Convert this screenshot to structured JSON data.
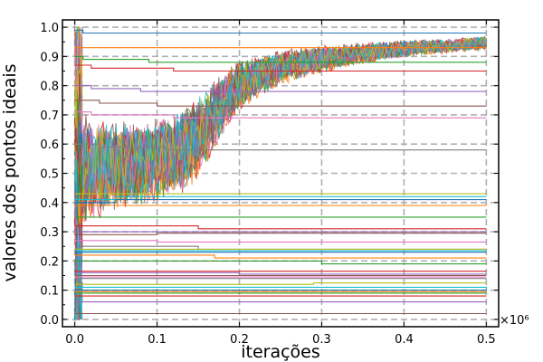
{
  "chart_data": {
    "type": "line",
    "title": "",
    "xlabel": "iterações",
    "ylabel": "valores dos pontos ideais",
    "x_multiplier_label": "×10⁶",
    "xlim": [
      -0.015,
      0.515
    ],
    "ylim": [
      -0.025,
      1.025
    ],
    "x_ticks": [
      0.0,
      0.1,
      0.2,
      0.3,
      0.4,
      0.5
    ],
    "x_tick_labels": [
      "0.0",
      "0.1",
      "0.2",
      "0.3",
      "0.4",
      "0.5"
    ],
    "y_ticks": [
      0.0,
      0.1,
      0.2,
      0.3,
      0.4,
      0.5,
      0.6,
      0.7,
      0.8,
      0.9,
      1.0
    ],
    "y_tick_labels": [
      "0.0",
      "0.1",
      "0.2",
      "0.3",
      "0.4",
      "0.5",
      "0.6",
      "0.7",
      "0.8",
      "0.9",
      "1.0"
    ],
    "grid": true,
    "grid_style": "dashed",
    "legend": "none",
    "series_colors": [
      "#1f77b4",
      "#ff7f0e",
      "#2ca02c",
      "#d62728",
      "#9467bd",
      "#8c564b",
      "#e377c2",
      "#7f7f7f",
      "#bcbd22",
      "#17becf"
    ],
    "converging_band": {
      "x": [
        0.0,
        0.02,
        0.05,
        0.08,
        0.1,
        0.13,
        0.15,
        0.17,
        0.2,
        0.25,
        0.3,
        0.35,
        0.4,
        0.45,
        0.5
      ],
      "center": [
        0.5,
        0.51,
        0.52,
        0.53,
        0.54,
        0.57,
        0.62,
        0.7,
        0.8,
        0.86,
        0.89,
        0.91,
        0.925,
        0.935,
        0.945
      ],
      "spread": [
        0.18,
        0.15,
        0.13,
        0.12,
        0.12,
        0.12,
        0.12,
        0.1,
        0.07,
        0.05,
        0.04,
        0.03,
        0.025,
        0.02,
        0.02
      ]
    },
    "plateau_series": [
      {
        "levels": [
          [
            0.0,
            0.99
          ],
          [
            0.01,
            0.98
          ]
        ]
      },
      {
        "levels": [
          [
            0.0,
            0.93
          ],
          [
            0.2,
            0.93
          ]
        ]
      },
      {
        "levels": [
          [
            0.0,
            0.9
          ],
          [
            0.01,
            0.89
          ],
          [
            0.09,
            0.88
          ]
        ]
      },
      {
        "levels": [
          [
            0.0,
            0.87
          ],
          [
            0.02,
            0.86
          ],
          [
            0.12,
            0.85
          ]
        ]
      },
      {
        "levels": [
          [
            0.0,
            0.8
          ],
          [
            0.02,
            0.79
          ],
          [
            0.08,
            0.78
          ]
        ]
      },
      {
        "levels": [
          [
            0.0,
            0.75
          ],
          [
            0.03,
            0.74
          ],
          [
            0.1,
            0.73
          ]
        ]
      },
      {
        "levels": [
          [
            0.0,
            0.71
          ],
          [
            0.02,
            0.7
          ],
          [
            0.12,
            0.69
          ]
        ]
      },
      {
        "levels": [
          [
            0.0,
            0.6
          ],
          [
            0.03,
            0.59
          ],
          [
            0.11,
            0.58
          ]
        ]
      },
      {
        "levels": [
          [
            0.0,
            0.43
          ],
          [
            0.1,
            0.43
          ],
          [
            0.3,
            0.43
          ]
        ]
      },
      {
        "levels": [
          [
            0.0,
            0.41
          ],
          [
            0.05,
            0.42
          ],
          [
            0.5,
            0.42
          ]
        ]
      },
      {
        "levels": [
          [
            0.0,
            0.4
          ],
          [
            0.05,
            0.41
          ],
          [
            0.5,
            0.41
          ]
        ]
      },
      {
        "levels": [
          [
            0.0,
            0.39
          ],
          [
            0.2,
            0.39
          ]
        ]
      },
      {
        "levels": [
          [
            0.0,
            0.35
          ],
          [
            0.1,
            0.35
          ],
          [
            0.5,
            0.35
          ]
        ]
      },
      {
        "levels": [
          [
            0.0,
            0.32
          ],
          [
            0.15,
            0.31
          ],
          [
            0.5,
            0.31
          ]
        ]
      },
      {
        "levels": [
          [
            0.0,
            0.3
          ],
          [
            0.2,
            0.3
          ],
          [
            0.5,
            0.3
          ]
        ]
      },
      {
        "levels": [
          [
            0.0,
            0.29
          ],
          [
            0.1,
            0.295
          ],
          [
            0.5,
            0.295
          ]
        ]
      },
      {
        "levels": [
          [
            0.0,
            0.27
          ],
          [
            0.03,
            0.27
          ],
          [
            0.1,
            0.265
          ]
        ]
      },
      {
        "levels": [
          [
            0.0,
            0.25
          ],
          [
            0.05,
            0.25
          ],
          [
            0.15,
            0.24
          ]
        ]
      },
      {
        "levels": [
          [
            0.0,
            0.24
          ],
          [
            0.05,
            0.24
          ],
          [
            0.5,
            0.24
          ]
        ]
      },
      {
        "levels": [
          [
            0.0,
            0.235
          ],
          [
            0.5,
            0.235
          ]
        ]
      },
      {
        "levels": [
          [
            0.0,
            0.23
          ],
          [
            0.5,
            0.23
          ]
        ]
      },
      {
        "levels": [
          [
            0.0,
            0.22
          ],
          [
            0.1,
            0.22
          ],
          [
            0.17,
            0.21
          ]
        ]
      },
      {
        "levels": [
          [
            0.0,
            0.2
          ],
          [
            0.12,
            0.2
          ],
          [
            0.3,
            0.19
          ]
        ]
      },
      {
        "levels": [
          [
            0.0,
            0.165
          ],
          [
            0.05,
            0.165
          ]
        ]
      },
      {
        "levels": [
          [
            0.0,
            0.16
          ],
          [
            0.1,
            0.16
          ],
          [
            0.2,
            0.155
          ]
        ]
      },
      {
        "levels": [
          [
            0.0,
            0.15
          ],
          [
            0.5,
            0.15
          ]
        ]
      },
      {
        "levels": [
          [
            0.0,
            0.145
          ],
          [
            0.2,
            0.145
          ],
          [
            0.5,
            0.145
          ]
        ]
      },
      {
        "levels": [
          [
            0.0,
            0.14
          ],
          [
            0.25,
            0.14
          ],
          [
            0.5,
            0.14
          ]
        ]
      },
      {
        "levels": [
          [
            0.0,
            0.12
          ],
          [
            0.1,
            0.12
          ],
          [
            0.29,
            0.125
          ]
        ]
      },
      {
        "levels": [
          [
            0.0,
            0.11
          ],
          [
            0.3,
            0.11
          ],
          [
            0.5,
            0.1
          ]
        ]
      },
      {
        "levels": [
          [
            0.0,
            0.1
          ],
          [
            0.5,
            0.1
          ]
        ]
      },
      {
        "levels": [
          [
            0.0,
            0.095
          ],
          [
            0.2,
            0.095
          ],
          [
            0.5,
            0.095
          ]
        ]
      },
      {
        "levels": [
          [
            0.0,
            0.09
          ],
          [
            0.2,
            0.09
          ]
        ]
      },
      {
        "levels": [
          [
            0.0,
            0.08
          ],
          [
            0.1,
            0.08
          ]
        ]
      },
      {
        "levels": [
          [
            0.0,
            0.06
          ],
          [
            0.05,
            0.06
          ]
        ]
      },
      {
        "levels": [
          [
            0.0,
            0.02
          ],
          [
            0.01,
            0.02
          ]
        ]
      }
    ]
  }
}
